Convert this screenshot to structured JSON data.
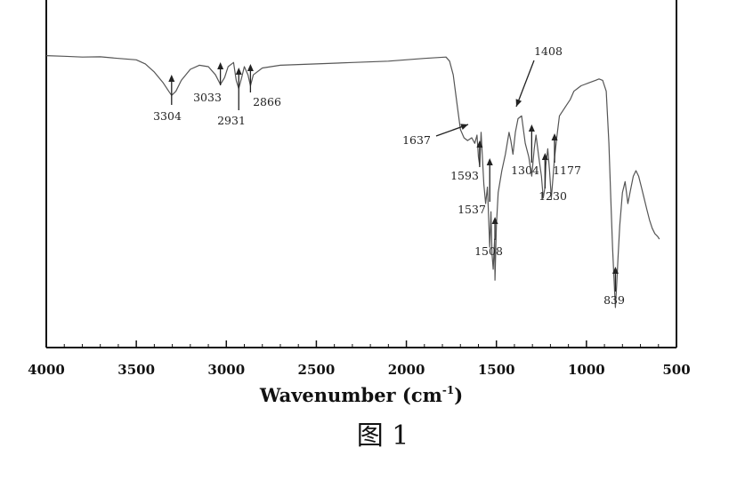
{
  "chart_data": {
    "type": "line",
    "title": "",
    "xlabel": "Wavenumber (cm",
    "xlabel_sup": "-1",
    "xlabel_close": ")",
    "ylabel": "",
    "xlim": [
      4000,
      500
    ],
    "ylim": [
      0,
      100
    ],
    "x_reversed": true,
    "grid": false,
    "x_ticks": [
      {
        "value": 4000,
        "label": "4000"
      },
      {
        "value": 3500,
        "label": "3500"
      },
      {
        "value": 3000,
        "label": "3000"
      },
      {
        "value": 2500,
        "label": "2500"
      },
      {
        "value": 2000,
        "label": "2000"
      },
      {
        "value": 1500,
        "label": "1500"
      },
      {
        "value": 1000,
        "label": "1000"
      },
      {
        "value": 500,
        "label": "500"
      }
    ],
    "series": [
      {
        "x": [
          4000,
          3900,
          3800,
          3700,
          3600,
          3500,
          3450,
          3400,
          3350,
          3320,
          3304,
          3280,
          3250,
          3200,
          3150,
          3100,
          3060,
          3033,
          3010,
          2990,
          2960,
          2945,
          2931,
          2915,
          2900,
          2880,
          2866,
          2850,
          2800,
          2700,
          2500,
          2300,
          2100,
          1900,
          1780,
          1760,
          1740,
          1720,
          1700,
          1680,
          1660,
          1637,
          1620,
          1608,
          1600,
          1593,
          1585,
          1570,
          1560,
          1550,
          1545,
          1537,
          1530,
          1525,
          1518,
          1510,
          1508,
          1500,
          1490,
          1470,
          1450,
          1430,
          1420,
          1408,
          1395,
          1380,
          1360,
          1340,
          1320,
          1304,
          1290,
          1280,
          1265,
          1250,
          1240,
          1230,
          1225,
          1215,
          1205,
          1195,
          1185,
          1177,
          1165,
          1150,
          1130,
          1110,
          1090,
          1070,
          1050,
          1030,
          1010,
          990,
          970,
          950,
          930,
          910,
          890,
          875,
          865,
          855,
          848,
          842,
          839,
          832,
          825,
          815,
          800,
          785,
          770,
          755,
          740,
          725,
          710,
          695,
          680,
          665,
          650,
          635,
          620,
          605,
          595
        ],
        "y": [
          92,
          91.8,
          91.5,
          91.6,
          91,
          90.5,
          89,
          86,
          82,
          79,
          77.5,
          79,
          83,
          87,
          88.5,
          88,
          85,
          81.5,
          84,
          88,
          89.5,
          83,
          80,
          84,
          88,
          85,
          81,
          85,
          87.5,
          88.5,
          89,
          89.5,
          90,
          91,
          91.5,
          90,
          85,
          75,
          65,
          62,
          61,
          62,
          60,
          63,
          55,
          52,
          64,
          45,
          38,
          44,
          36,
          22,
          35,
          20,
          14,
          25,
          10,
          30,
          42,
          50,
          56,
          64,
          61,
          56,
          64,
          69,
          70,
          60,
          55,
          48,
          58,
          63,
          55,
          48,
          40,
          44,
          52,
          58,
          50,
          40,
          48,
          55,
          62,
          70,
          72,
          74,
          76,
          79,
          80,
          81,
          81.5,
          82,
          82.5,
          83,
          83.5,
          83,
          79,
          60,
          40,
          22,
          12,
          4,
          0,
          8,
          18,
          30,
          42,
          46,
          38,
          43,
          48,
          50,
          48,
          44,
          40,
          36,
          32,
          29,
          27,
          26,
          25
        ]
      }
    ],
    "annotations": [
      {
        "label": "3304",
        "x": 3304
      },
      {
        "label": "3033",
        "x": 3033
      },
      {
        "label": "2931",
        "x": 2931
      },
      {
        "label": "2866",
        "x": 2866
      },
      {
        "label": "1637",
        "x": 1637
      },
      {
        "label": "1408",
        "x": 1408
      },
      {
        "label": "1593",
        "x": 1593
      },
      {
        "label": "1537",
        "x": 1537
      },
      {
        "label": "1508",
        "x": 1508
      },
      {
        "label": "1304",
        "x": 1304
      },
      {
        "label": "1177",
        "x": 1177
      },
      {
        "label": "1230",
        "x": 1230
      },
      {
        "label": "839",
        "x": 839
      }
    ]
  },
  "figure_caption": "图 1"
}
